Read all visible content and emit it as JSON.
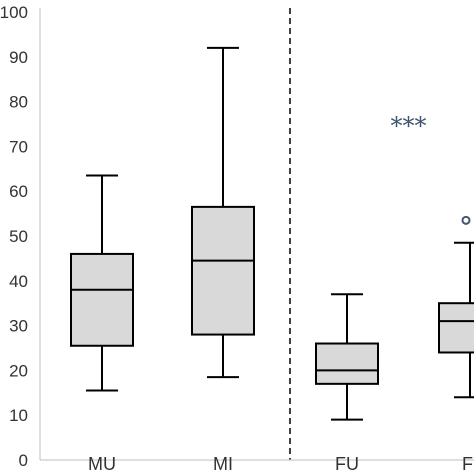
{
  "chart_data": {
    "type": "box",
    "ylim": [
      0,
      100
    ],
    "yticks": [
      {
        "value": 0,
        "label": "0"
      },
      {
        "value": 10,
        "label": "10"
      },
      {
        "value": 20,
        "label": "20"
      },
      {
        "value": 30,
        "label": "30"
      },
      {
        "value": 40,
        "label": "40"
      },
      {
        "value": 50,
        "label": "50"
      },
      {
        "value": 60,
        "label": "60"
      },
      {
        "value": 70,
        "label": "70"
      },
      {
        "value": 80,
        "label": "80"
      },
      {
        "value": 90,
        "label": "90"
      },
      {
        "value": 100,
        "label": "100"
      }
    ],
    "categories": [
      "MU",
      "MI",
      "FU",
      "FI"
    ],
    "boxes": [
      {
        "category": "MU",
        "label": "MU",
        "min": 15.5,
        "q1": 25.5,
        "median": 38,
        "q3": 46,
        "max": 63.5,
        "outliers": []
      },
      {
        "category": "MI",
        "label": "MI",
        "min": 18.5,
        "q1": 28,
        "median": 44.5,
        "q3": 56.5,
        "max": 92,
        "outliers": []
      },
      {
        "category": "FU",
        "label": "FU",
        "min": 9,
        "q1": 17,
        "median": 20,
        "q3": 26,
        "max": 37,
        "outliers": []
      },
      {
        "category": "FI",
        "label": "FI",
        "min": 14,
        "q1": 24,
        "median": 31,
        "q3": 35,
        "max": 48.5,
        "outliers": [
          53.5
        ]
      }
    ],
    "separator_after": "MI",
    "annotation": {
      "text": "***",
      "category": "FU",
      "x_offset": 0.5,
      "y": 75
    },
    "colors": {
      "box_fill": "#d9d9d9",
      "stroke": "#000000",
      "annotation": "#44546a",
      "axis": "#bfbfbf"
    }
  }
}
